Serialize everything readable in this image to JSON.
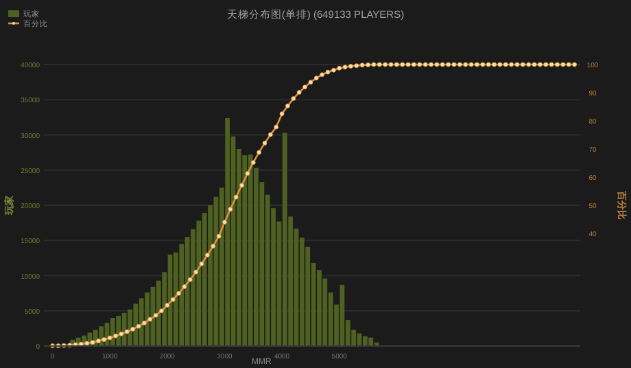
{
  "chart_data": {
    "type": "histogram",
    "title": "天梯分布图(单排) (649133 PLAYERS)",
    "xlabel": "MMR",
    "ylabel": "玩家",
    "y2label": "百分比",
    "xlim": [
      -150,
      9200
    ],
    "xticks": [
      0,
      1000,
      2000,
      3000,
      4000,
      5000
    ],
    "ylim": [
      0,
      40000
    ],
    "yticks": [
      0,
      5000,
      10000,
      15000,
      20000,
      25000,
      30000,
      35000,
      40000
    ],
    "y2lim": [
      0,
      100
    ],
    "y2ticks": [
      40,
      50,
      60,
      70,
      80,
      90,
      100
    ],
    "grid": "y",
    "legend": "top left",
    "series": [
      {
        "name": "玩家",
        "type": "histogram",
        "color": "#4e6121",
        "bins": [
          300,
          400,
          500,
          600,
          700,
          800,
          900,
          1000,
          1100,
          1200,
          1300,
          1400,
          1500,
          1600,
          1700,
          1800,
          1900,
          2000,
          2100,
          2200,
          2300,
          2400,
          2500,
          2600,
          2700,
          2800,
          2900,
          3000,
          3100,
          3200,
          3300,
          3400,
          3500,
          3600,
          3700,
          3800,
          3900,
          4000,
          4100,
          4200,
          4300,
          4400,
          4500,
          4600,
          4700,
          4800,
          4900,
          5000,
          5100,
          5200,
          5300,
          5400,
          5500,
          5600,
          5700
        ],
        "values": [
          900,
          1200,
          1500,
          1900,
          2300,
          2800,
          3300,
          4000,
          4300,
          4700,
          5200,
          6000,
          6800,
          7600,
          8400,
          9300,
          10500,
          13000,
          13300,
          14500,
          15500,
          16600,
          17800,
          18900,
          20000,
          21200,
          22500,
          32400,
          29800,
          28000,
          27100,
          27200,
          25300,
          23300,
          21500,
          19600,
          17700,
          30300,
          18400,
          16700,
          15400,
          14100,
          11800,
          10800,
          9600,
          7600,
          5900,
          8700,
          3700,
          2300,
          1800,
          1400,
          1200,
          500
        ]
      },
      {
        "name": "百分比",
        "type": "line",
        "axis": "y2",
        "color": "#e0903a",
        "marker": "circle",
        "x": [
          0,
          100,
          200,
          300,
          400,
          500,
          600,
          700,
          800,
          900,
          1000,
          1100,
          1200,
          1300,
          1400,
          1500,
          1600,
          1700,
          1800,
          1900,
          2000,
          2100,
          2200,
          2300,
          2400,
          2500,
          2600,
          2700,
          2800,
          2900,
          3000,
          3100,
          3200,
          3300,
          3400,
          3500,
          3600,
          3700,
          3800,
          3900,
          4000,
          4100,
          4200,
          4300,
          4400,
          4500,
          4600,
          4700,
          4800,
          4900,
          5000,
          5100,
          5200,
          5300,
          5400,
          5500,
          5600,
          5700,
          5800,
          5900,
          6000,
          6100,
          6200,
          6300,
          6400,
          6500,
          6600,
          6700,
          6800,
          6900,
          7000,
          7100,
          7200,
          7300,
          7400,
          7500,
          7600,
          7700,
          7800,
          7900,
          8000,
          8100,
          8200,
          8300,
          8400,
          8500,
          8600,
          8700,
          8800,
          8900,
          9000,
          9100
        ],
        "values": [
          0.1,
          0.1,
          0.2,
          0.3,
          0.5,
          0.7,
          1,
          1.3,
          1.8,
          2.3,
          2.9,
          3.6,
          4.3,
          5.1,
          6,
          7,
          8.2,
          9.5,
          10.9,
          12.5,
          14.5,
          16.5,
          18.7,
          21.1,
          23.6,
          26.3,
          29.2,
          32.3,
          35.5,
          39,
          44,
          48.6,
          52.9,
          57.1,
          61.3,
          65.2,
          68.8,
          72.1,
          75.1,
          77.8,
          82.5,
          85.3,
          87.9,
          90.1,
          92,
          93.7,
          95.2,
          96.4,
          97.3,
          98,
          98.7,
          99.1,
          99.4,
          99.6,
          99.8,
          99.9,
          100,
          100,
          100,
          100,
          100,
          100,
          100,
          100,
          100,
          100,
          100,
          100,
          100,
          100,
          100,
          100,
          100,
          100,
          100,
          100,
          100,
          100,
          100,
          100,
          100,
          100,
          100,
          100,
          100,
          100,
          100,
          100,
          100,
          100,
          100,
          100
        ]
      }
    ]
  }
}
